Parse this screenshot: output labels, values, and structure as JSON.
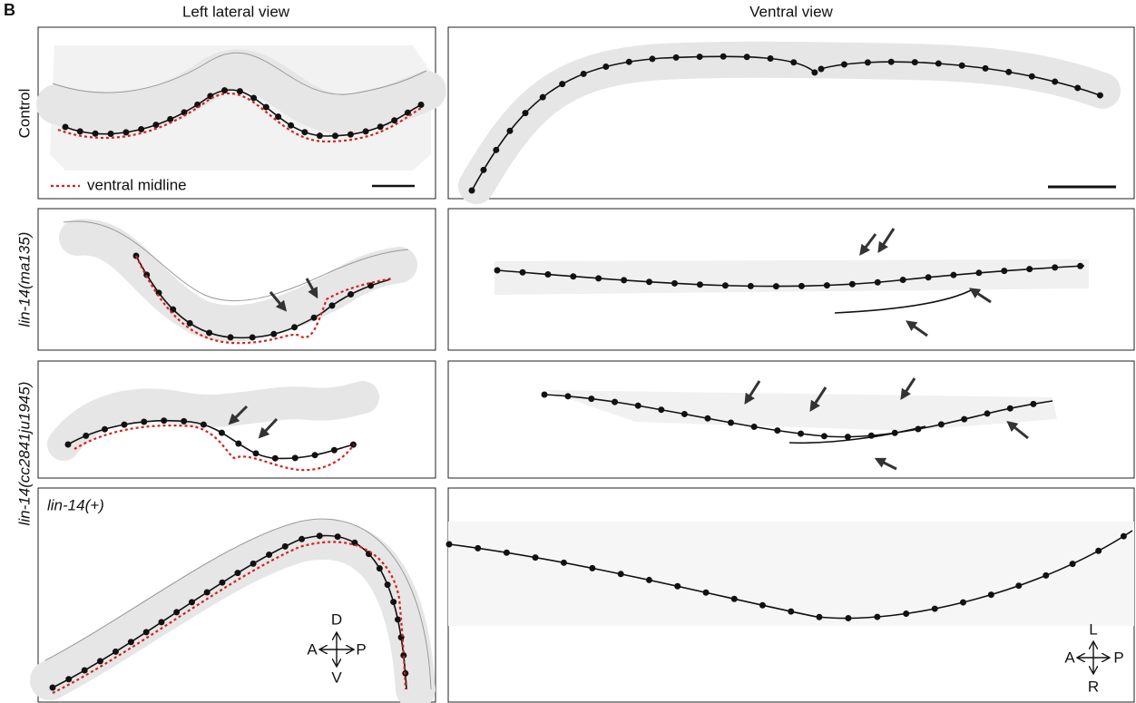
{
  "panel_label": "B",
  "column_headers": [
    "Left lateral view",
    "Ventral view"
  ],
  "rows": [
    {
      "label": "Control"
    },
    {
      "label": "lin-14(ma135)"
    },
    {
      "label": "lin-14(cc2841ju1945)"
    },
    {
      "label": "lin-14(+)"
    }
  ],
  "legend": {
    "ventral_midline": "ventral midline"
  },
  "compass_lateral": {
    "top": "D",
    "bottom": "V",
    "left": "A",
    "right": "P"
  },
  "compass_ventral": {
    "top": "L",
    "bottom": "R",
    "left": "A",
    "right": "P"
  }
}
